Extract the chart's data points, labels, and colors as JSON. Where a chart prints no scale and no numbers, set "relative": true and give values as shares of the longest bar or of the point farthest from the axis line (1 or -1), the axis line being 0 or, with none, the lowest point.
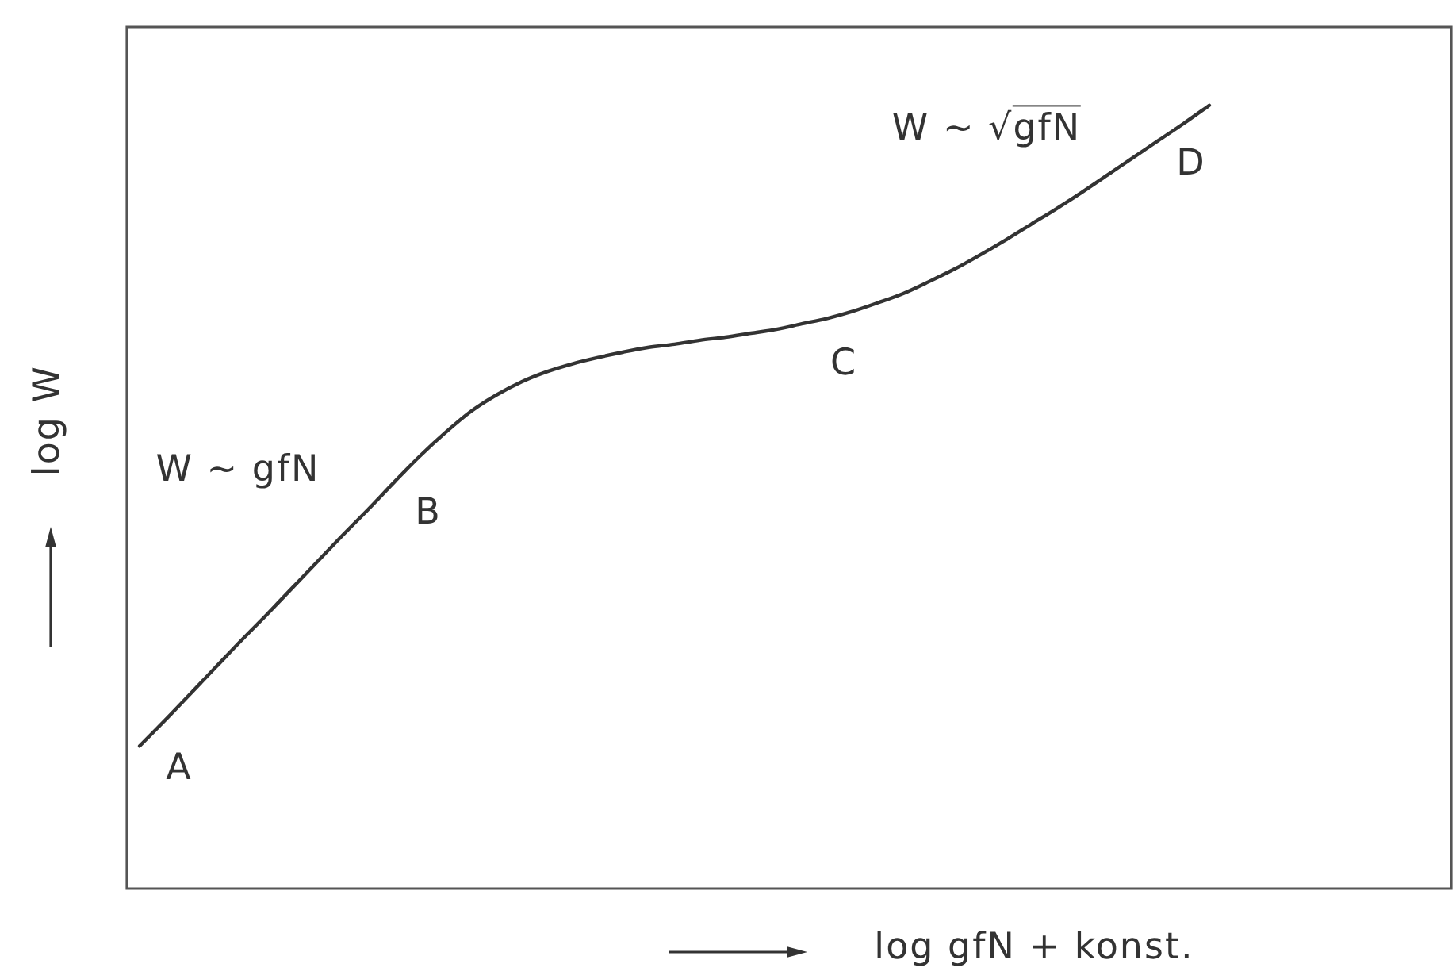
{
  "chart_data": {
    "type": "line",
    "relative": true,
    "tick_labels": false,
    "xlabel": "log gfN + konst.",
    "ylabel": "log W",
    "categories": [
      null,
      null,
      null,
      null,
      null,
      null,
      null,
      null,
      null,
      null,
      null,
      null,
      null,
      null,
      null,
      null,
      null,
      null,
      null,
      null,
      null,
      null,
      null,
      null,
      null,
      null,
      null,
      null,
      null,
      null,
      null,
      null,
      null,
      null,
      null,
      null,
      null,
      null,
      null,
      null,
      null,
      null,
      null,
      null,
      null,
      null,
      null,
      null,
      null,
      null,
      null,
      null
    ],
    "series": [
      {
        "color": "#333333",
        "values": [
          0.182,
          0.215,
          0.249,
          0.283,
          0.317,
          0.35,
          0.384,
          0.418,
          0.452,
          0.485,
          0.519,
          0.552,
          0.582,
          0.609,
          0.63,
          0.647,
          0.66,
          0.67,
          0.678,
          0.685,
          0.691,
          0.695,
          0.7,
          0.704,
          0.709,
          0.714,
          0.721,
          0.728,
          0.737,
          0.748,
          0.76,
          0.775,
          0.791,
          0.809,
          0.828,
          0.848,
          0.868,
          0.889,
          0.911,
          0.933,
          0.955,
          0.977,
          1,
          null,
          null,
          null,
          null,
          null,
          null,
          null,
          null,
          null
        ]
      }
    ],
    "annotations": [
      "W ~ gfN",
      "W ~ √gfN",
      "A",
      "B",
      "C",
      "D"
    ]
  }
}
